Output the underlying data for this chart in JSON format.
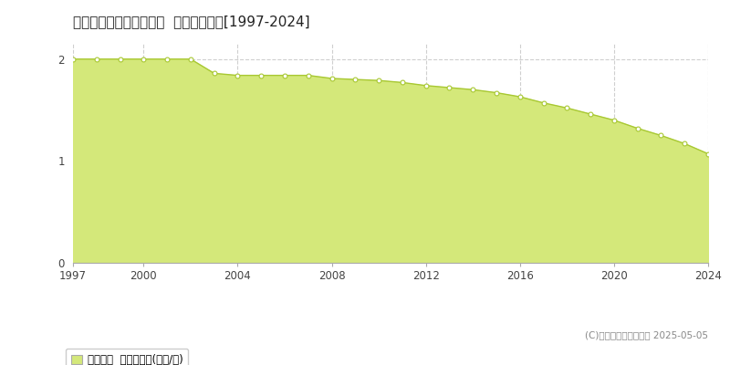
{
  "title": "幌泉郡えりも町えりも岬  基準地価推移[1997-2024]",
  "years": [
    1997,
    1998,
    1999,
    2000,
    2001,
    2002,
    2003,
    2004,
    2005,
    2006,
    2007,
    2008,
    2009,
    2010,
    2011,
    2012,
    2013,
    2014,
    2015,
    2016,
    2017,
    2018,
    2019,
    2020,
    2021,
    2022,
    2023,
    2024
  ],
  "values": [
    2.0,
    2.0,
    2.0,
    2.0,
    2.0,
    2.0,
    1.86,
    1.84,
    1.84,
    1.84,
    1.84,
    1.81,
    1.8,
    1.79,
    1.77,
    1.74,
    1.72,
    1.7,
    1.67,
    1.63,
    1.57,
    1.52,
    1.46,
    1.4,
    1.32,
    1.25,
    1.17,
    1.07
  ],
  "line_color": "#a8c832",
  "fill_color": "#d4e87a",
  "fill_alpha": 1.0,
  "marker_color": "white",
  "marker_edge_color": "#a8c832",
  "marker_size": 3.5,
  "ylim": [
    0,
    2.15
  ],
  "yticks": [
    0,
    1,
    2
  ],
  "ytick_labels": [
    "0",
    "1",
    "2"
  ],
  "xlabel_ticks": [
    1997,
    2000,
    2004,
    2008,
    2012,
    2016,
    2020,
    2024
  ],
  "grid_color": "#bbbbbb",
  "grid_linestyle": "--",
  "grid_alpha": 0.7,
  "bg_color": "#ffffff",
  "legend_label": "基準地価  平均坪単価(万円/坪)",
  "copyright_text": "(C)土地価格ドットコム 2025-05-05",
  "title_fontsize": 11,
  "tick_fontsize": 8.5,
  "legend_fontsize": 8.5,
  "copyright_fontsize": 7.5
}
